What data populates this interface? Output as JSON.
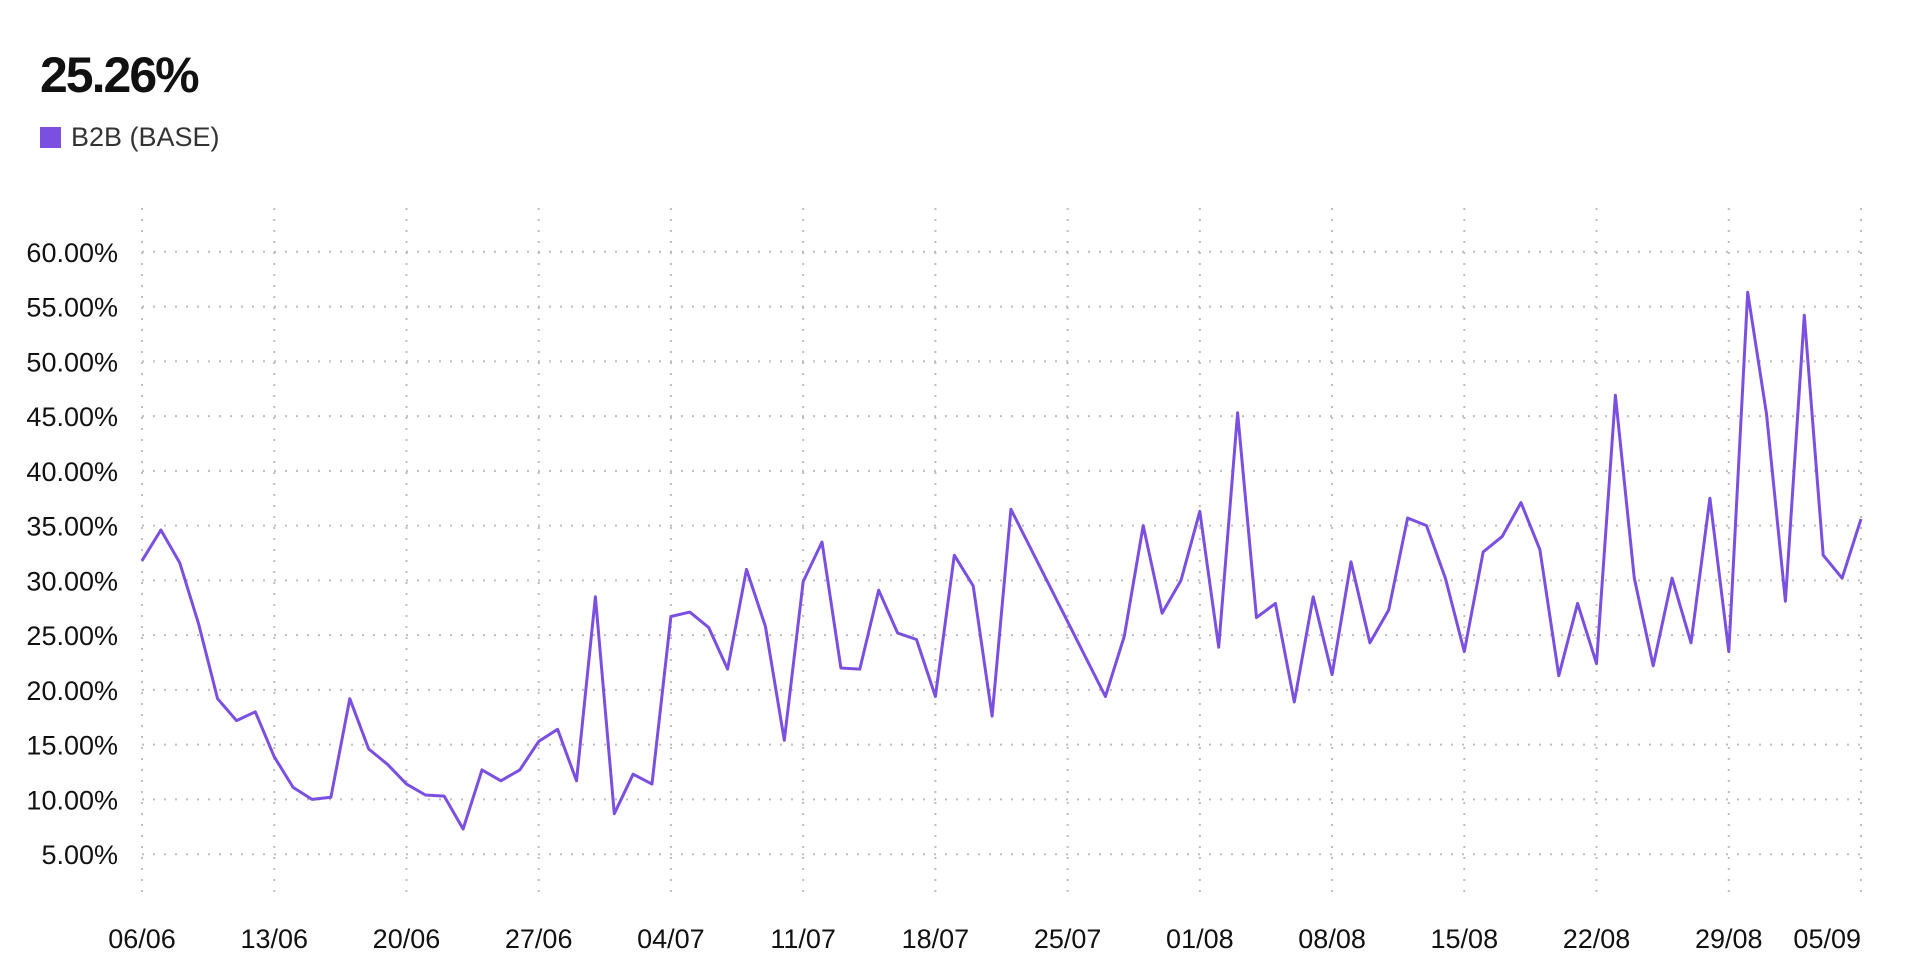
{
  "headline": {
    "value": "25.26%"
  },
  "legend": {
    "label": "B2B (BASE)",
    "color": "#7B4FE0"
  },
  "chart_data": {
    "type": "line",
    "title": "",
    "xlabel": "",
    "ylabel": "",
    "grid": true,
    "grid_style": "dotted",
    "legend_position": "top-left",
    "y_ticks": [
      5,
      10,
      15,
      20,
      25,
      30,
      35,
      40,
      45,
      50,
      55,
      60
    ],
    "y_tick_labels": [
      "5.00%",
      "10.00%",
      "15.00%",
      "20.00%",
      "25.00%",
      "30.00%",
      "35.00%",
      "40.00%",
      "45.00%",
      "50.00%",
      "55.00%",
      "60.00%"
    ],
    "ylim": [
      1,
      64
    ],
    "xlim": [
      "06/06",
      "05/09"
    ],
    "x_ticks": [
      "06/06",
      "13/06",
      "20/06",
      "27/06",
      "04/07",
      "11/07",
      "18/07",
      "25/07",
      "01/08",
      "08/08",
      "15/08",
      "22/08",
      "29/08",
      "05/09"
    ],
    "series": [
      {
        "name": "B2B (BASE)",
        "color": "#7B4FE0",
        "x": [
          "06/06",
          "07/06",
          "08/06",
          "09/06",
          "10/06",
          "11/06",
          "12/06",
          "13/06",
          "14/06",
          "15/06",
          "16/06",
          "17/06",
          "18/06",
          "19/06",
          "20/06",
          "21/06",
          "22/06",
          "23/06",
          "24/06",
          "25/06",
          "26/06",
          "27/06",
          "28/06",
          "29/06",
          "30/06",
          "01/07",
          "02/07",
          "03/07",
          "04/07",
          "05/07",
          "06/07",
          "07/07",
          "08/07",
          "09/07",
          "10/07",
          "11/07",
          "12/07",
          "13/07",
          "14/07",
          "15/07",
          "16/07",
          "17/07",
          "18/07",
          "19/07",
          "20/07",
          "21/07",
          "22/07",
          "27/07",
          "28/07",
          "29/07",
          "30/07",
          "31/07",
          "01/08",
          "02/08",
          "03/08",
          "04/08",
          "05/08",
          "06/08",
          "07/08",
          "08/08",
          "09/08",
          "10/08",
          "11/08",
          "12/08",
          "13/08",
          "14/08",
          "15/08",
          "16/08",
          "17/08",
          "18/08",
          "19/08",
          "20/08",
          "21/08",
          "22/08",
          "23/08",
          "24/08",
          "25/08",
          "26/08",
          "27/08",
          "28/08",
          "29/08",
          "30/08",
          "31/08",
          "01/09",
          "02/09",
          "03/09",
          "04/09",
          "05/09"
        ],
        "values": [
          31.8,
          34.6,
          31.6,
          26.0,
          19.2,
          17.2,
          18.0,
          13.9,
          11.1,
          10.0,
          10.2,
          19.2,
          14.6,
          13.2,
          11.4,
          10.4,
          10.3,
          7.3,
          12.7,
          11.7,
          12.7,
          15.3,
          16.4,
          11.7,
          28.5,
          8.7,
          12.3,
          11.4,
          26.7,
          27.1,
          25.7,
          21.9,
          31.0,
          25.8,
          15.4,
          29.9,
          33.5,
          22.0,
          21.9,
          29.1,
          25.2,
          24.6,
          19.4,
          32.3,
          29.5,
          17.6,
          36.5,
          19.4,
          24.9,
          35.0,
          27.0,
          30.0,
          36.3,
          23.9,
          45.3,
          26.6,
          27.9,
          18.9,
          28.5,
          21.4,
          31.7,
          24.3,
          27.3,
          35.7,
          35.0,
          30.2,
          23.5,
          32.6,
          34.0,
          37.1,
          32.8,
          21.3,
          27.9,
          22.4,
          46.9,
          30.2,
          22.2,
          30.2,
          24.3,
          37.5,
          23.5,
          56.3,
          45.2,
          28.1,
          54.2,
          32.3,
          30.2,
          35.6
        ]
      }
    ]
  }
}
